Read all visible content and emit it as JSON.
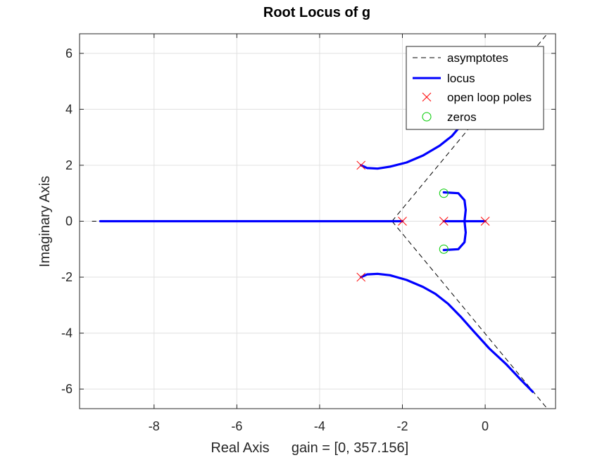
{
  "chart_data": {
    "type": "line",
    "title": "Root Locus of g",
    "xlabel": "Real Axis",
    "gain_label": "gain = [0, 357.156]",
    "ylabel": "Imaginary Axis",
    "xlim": [
      -9.8,
      1.7
    ],
    "ylim": [
      -6.7,
      6.7
    ],
    "x_ticks": [
      -8,
      -6,
      -4,
      -2,
      0
    ],
    "y_ticks": [
      -6,
      -4,
      -2,
      0,
      2,
      4,
      6
    ],
    "x_tick_labels": [
      "-8",
      "-6",
      "-4",
      "-2",
      "0"
    ],
    "y_tick_labels": [
      "-6",
      "-4",
      "-2",
      "0",
      "2",
      "4",
      "6"
    ],
    "grid": true,
    "legend_position": "top-right",
    "legend": {
      "asymptotes": "asymptotes",
      "locus": "locus",
      "poles": "open loop poles",
      "zeros": "zeros"
    },
    "colors": {
      "locus": "#0000ff",
      "asymptotes": "#000000",
      "poles": "#ff0000",
      "zeros": "#00cc00",
      "grid": "#e0e0e0"
    },
    "poles": [
      [
        -3,
        2
      ],
      [
        -3,
        -2
      ],
      [
        -2,
        0
      ],
      [
        -1,
        0
      ],
      [
        0,
        0
      ]
    ],
    "zeros": [
      [
        -1,
        1
      ],
      [
        -1,
        -1
      ]
    ],
    "asymptote_center": [
      -2.25,
      0
    ],
    "asymptote_lines": [
      [
        [
          -2.25,
          0
        ],
        [
          1.5,
          6.75
        ]
      ],
      [
        [
          -2.25,
          0
        ],
        [
          1.5,
          -6.75
        ]
      ],
      [
        [
          -2.25,
          0
        ],
        [
          -9.5,
          0
        ]
      ]
    ],
    "locus_branches": [
      [
        [
          -3,
          2
        ],
        [
          -2.85,
          1.9
        ],
        [
          -2.6,
          1.88
        ],
        [
          -2.3,
          1.95
        ],
        [
          -1.9,
          2.1
        ],
        [
          -1.5,
          2.35
        ],
        [
          -1.1,
          2.7
        ],
        [
          -0.8,
          3.05
        ],
        [
          -0.6,
          3.4
        ],
        [
          -0.55,
          3.5
        ]
      ],
      [
        [
          -3,
          -2
        ],
        [
          -2.85,
          -1.9
        ],
        [
          -2.6,
          -1.88
        ],
        [
          -2.3,
          -1.93
        ],
        [
          -1.9,
          -2.1
        ],
        [
          -1.5,
          -2.35
        ],
        [
          -1.2,
          -2.6
        ],
        [
          -0.9,
          -2.95
        ],
        [
          -0.6,
          -3.4
        ],
        [
          -0.3,
          -3.9
        ],
        [
          0.1,
          -4.55
        ],
        [
          0.5,
          -5.1
        ],
        [
          0.85,
          -5.65
        ],
        [
          1.15,
          -6.1
        ]
      ],
      [
        [
          -2,
          0
        ],
        [
          -4,
          0
        ],
        [
          -6,
          0
        ],
        [
          -8,
          0
        ],
        [
          -9.3,
          0
        ]
      ],
      [
        [
          -1,
          0
        ],
        [
          0,
          0
        ]
      ],
      [
        [
          -0.5,
          0
        ],
        [
          -0.47,
          0.4
        ],
        [
          -0.5,
          0.75
        ],
        [
          -0.65,
          1.0
        ],
        [
          -1,
          1.03
        ]
      ],
      [
        [
          -0.5,
          0
        ],
        [
          -0.47,
          -0.4
        ],
        [
          -0.5,
          -0.75
        ],
        [
          -0.65,
          -1.0
        ],
        [
          -1,
          -1.03
        ]
      ]
    ]
  }
}
